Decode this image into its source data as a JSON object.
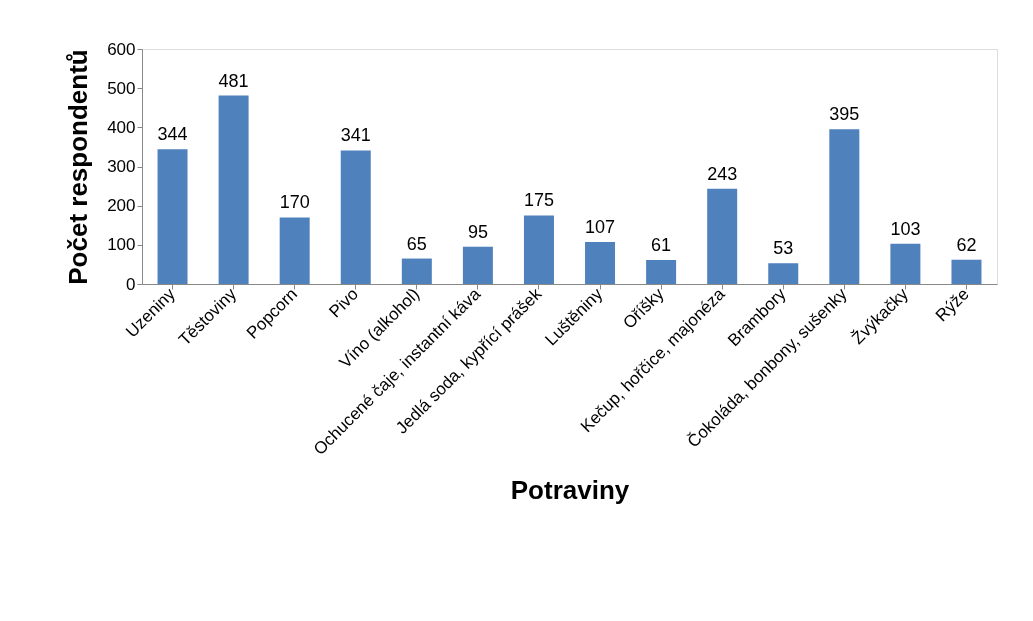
{
  "chart_data": {
    "type": "bar",
    "xlabel": "Potraviny",
    "ylabel": "Počet respondentů",
    "categories": [
      "Uzeniny",
      "Těstoviny",
      "Popcorn",
      "Pivo",
      "Víno (alkohol)",
      "Ochucené čaje, instantní káva",
      "Jedlá soda, kypřící prášek",
      "Luštěniny",
      "Oříšky",
      "Kečup, hořčice, majonéza",
      "Brambory",
      "Čokoláda, bonbony, sušenky",
      "Žvýkačky",
      "Rýže"
    ],
    "values": [
      344,
      481,
      170,
      341,
      65,
      95,
      175,
      107,
      61,
      243,
      53,
      395,
      103,
      62
    ],
    "color": "#4f81bd",
    "ylim": [
      0,
      600
    ],
    "yticks": [
      0,
      100,
      200,
      300,
      400,
      500,
      600
    ],
    "grid": false,
    "data_labels": true
  }
}
